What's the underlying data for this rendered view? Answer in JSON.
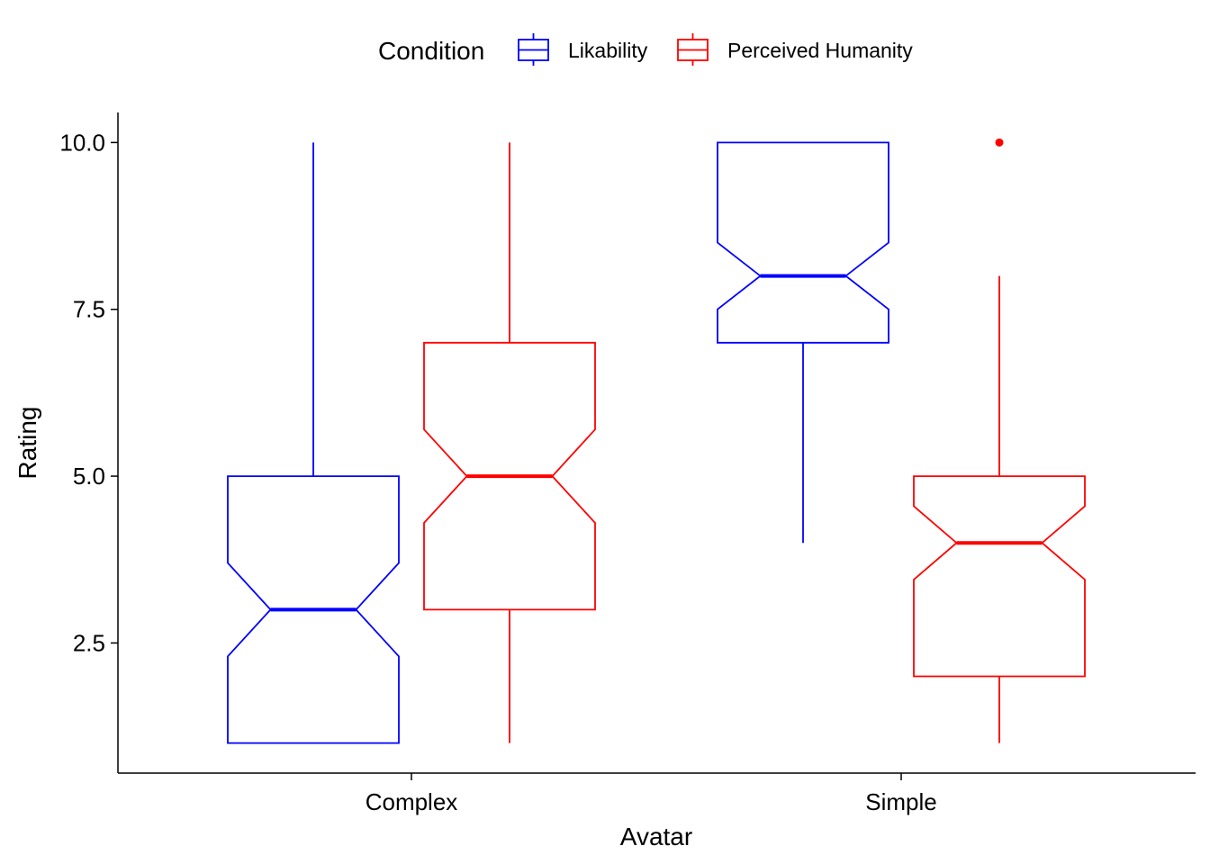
{
  "chart_data": {
    "type": "boxplot",
    "notched": true,
    "xlabel": "Avatar",
    "ylabel": "Rating",
    "ylim": [
      0.55,
      10.45
    ],
    "yticks": [
      2.5,
      5.0,
      7.5,
      10.0
    ],
    "ytick_labels": [
      "2.5",
      "5.0",
      "7.5",
      "10.0"
    ],
    "categories": [
      "Complex",
      "Simple"
    ],
    "grid": false,
    "legend": {
      "title": "Condition",
      "position": "top",
      "entries": [
        {
          "label": "Likability",
          "color": "#0000ff"
        },
        {
          "label": "Perceived Humanity",
          "color": "#ff0000"
        }
      ]
    },
    "series": [
      {
        "name": "Likability",
        "color": "#0000ff",
        "boxes": [
          {
            "category": "Complex",
            "whisker_low": 1,
            "q1": 1,
            "median": 3,
            "q3": 5,
            "whisker_high": 10,
            "notch_low": 2.3,
            "notch_high": 3.7,
            "outliers": []
          },
          {
            "category": "Simple",
            "whisker_low": 4,
            "q1": 7,
            "median": 8,
            "q3": 10,
            "whisker_high": 10,
            "notch_low": 7.5,
            "notch_high": 8.5,
            "outliers": []
          }
        ]
      },
      {
        "name": "Perceived Humanity",
        "color": "#ff0000",
        "boxes": [
          {
            "category": "Complex",
            "whisker_low": 1,
            "q1": 3,
            "median": 5,
            "q3": 7,
            "whisker_high": 10,
            "notch_low": 4.3,
            "notch_high": 5.7,
            "outliers": []
          },
          {
            "category": "Simple",
            "whisker_low": 1,
            "q1": 2,
            "median": 4,
            "q3": 5,
            "whisker_high": 8,
            "notch_low": 3.45,
            "notch_high": 4.55,
            "outliers": [
              10
            ]
          }
        ]
      }
    ]
  }
}
